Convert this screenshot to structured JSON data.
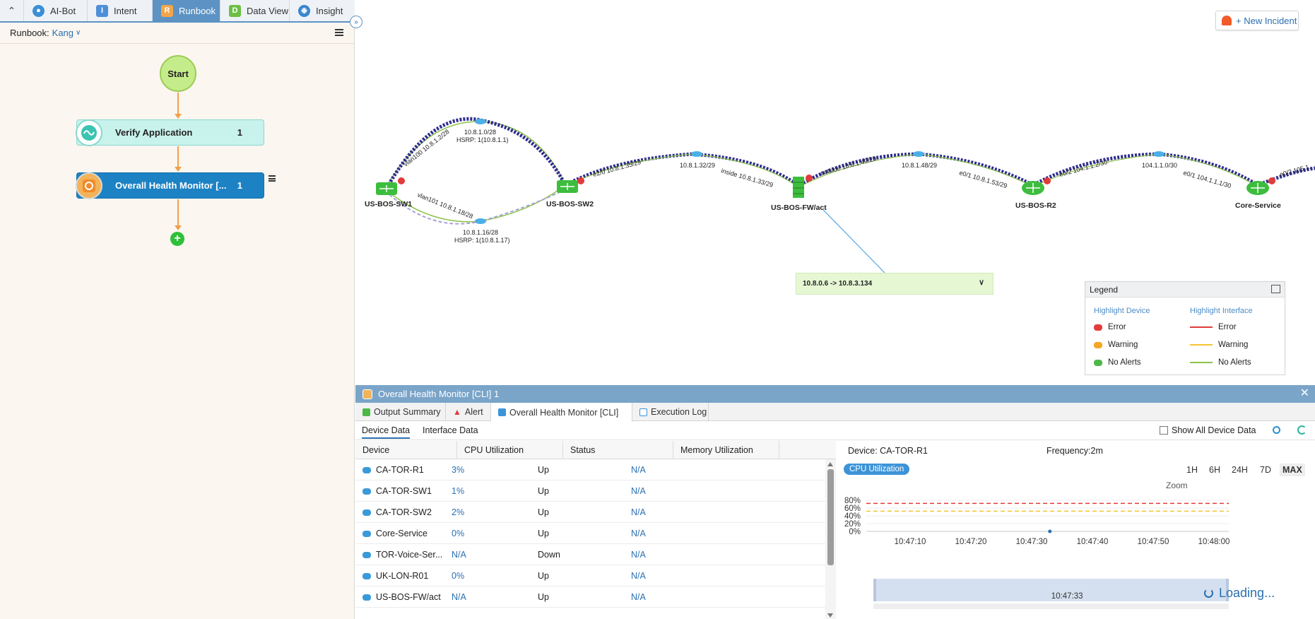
{
  "left_panel": {
    "tabs": [
      {
        "label": "AI-Bot",
        "icon": "ai-bot-icon"
      },
      {
        "label": "Intent",
        "icon": "intent-icon"
      },
      {
        "label": "Runbook",
        "icon": "runbook-icon"
      },
      {
        "label": "Data View",
        "icon": "data-view-icon"
      },
      {
        "label": "Insight",
        "icon": "insight-icon"
      }
    ],
    "active_tab": "Runbook",
    "runbook_label": "Runbook:",
    "runbook_name": "Kang",
    "flow": {
      "start_label": "Start",
      "nodes": [
        {
          "label": "Verify Application",
          "count": "1"
        },
        {
          "label": "Overall Health Monitor [...",
          "count": "1"
        }
      ]
    }
  },
  "map": {
    "new_incident_label": "+ New Incident",
    "devices": [
      "US-BOS-SW1",
      "US-BOS-SW2",
      "US-BOS-FW/act",
      "US-BOS-R2",
      "Core-Service"
    ],
    "link_labels": {
      "vlan100": "vlan100 10.8.1.2/28",
      "net1": "10.8.1.0/28",
      "hsrp1": "HSRP: 1(10.8.1.1)",
      "vlan101": "vlan101 10.8.1.18/28",
      "net2": "10.8.1.16/28",
      "hsrp2": "HSRP: 1(10.8.1.17)",
      "e2_0": "e2/0 10.8.1.35/29",
      "net3": "10.8.1.32/29",
      "inside": "inside 10.8.1.33/29",
      "outside": "outside 10.8.1.49/29",
      "net4": "10.8.1.48/29",
      "e0_1": "e0/1 10.8.1.53/29",
      "e0_2": "e0/2 104.1.1.2/30",
      "net5": "104.1.1.0/30",
      "e0_1b": "e0/1 104.1.1.1/30",
      "e0_2b": "e0/2 105.1."
    },
    "path_box": "10.8.0.6 -> 10.8.3.134",
    "legend": {
      "title": "Legend",
      "device_title": "Highlight Device",
      "interface_title": "Highlight Interface",
      "items": [
        "Error",
        "Warning",
        "No Alerts"
      ],
      "colors": {
        "error": "#e23b3b",
        "warning": "#f5a623",
        "no_alerts": "#4cb848"
      }
    }
  },
  "bottom_panel": {
    "title": "Overall Health Monitor [CLI] 1",
    "tabs": [
      "Output Summary",
      "Alert",
      "Overall Health Monitor [CLI]",
      "Execution Log"
    ],
    "subtabs": [
      "Device Data",
      "Interface Data"
    ],
    "show_all_label": "Show All Device Data",
    "columns": [
      "Device",
      "CPU Utilization",
      "Status",
      "Memory Utilization"
    ],
    "rows": [
      {
        "device": "CA-TOR-R1",
        "cpu": "3%",
        "status": "Up",
        "mem": "N/A"
      },
      {
        "device": "CA-TOR-SW1",
        "cpu": "1%",
        "status": "Up",
        "mem": "N/A"
      },
      {
        "device": "CA-TOR-SW2",
        "cpu": "2%",
        "status": "Up",
        "mem": "N/A"
      },
      {
        "device": "Core-Service",
        "cpu": "0%",
        "status": "Up",
        "mem": "N/A"
      },
      {
        "device": "TOR-Voice-Ser...",
        "cpu": "N/A",
        "status": "Down",
        "mem": "N/A"
      },
      {
        "device": "UK-LON-R01",
        "cpu": "0%",
        "status": "Up",
        "mem": "N/A"
      },
      {
        "device": "US-BOS-FW/act",
        "cpu": "N/A",
        "status": "Up",
        "mem": "N/A"
      }
    ],
    "chart_pane": {
      "device_label": "Device: CA-TOR-R1",
      "frequency_label": "Frequency:2m",
      "metric_pill": "CPU Utilization",
      "zoom_options": [
        "1H",
        "6H",
        "24H",
        "7D",
        "MAX"
      ],
      "zoom_active": "MAX",
      "zoom_label": "Zoom",
      "loading_label": "Loading...",
      "navigator_time": "10:47:33"
    }
  },
  "chart_data": {
    "type": "line",
    "title": "",
    "ylabel": "",
    "xlabel": "",
    "y_ticks": [
      "80%",
      "60%",
      "40%",
      "20%",
      "0%"
    ],
    "ylim": [
      0,
      100
    ],
    "x_ticks": [
      "10:47:10",
      "10:47:20",
      "10:47:30",
      "10:47:40",
      "10:47:50",
      "10:48:00"
    ],
    "thresholds": [
      {
        "value": 72,
        "color": "#e23b3b",
        "style": "dashed"
      },
      {
        "value": 52,
        "color": "#f5c431",
        "style": "dashed"
      }
    ],
    "series": [
      {
        "points": [
          {
            "x": "10:47:33",
            "y": 0
          }
        ]
      }
    ]
  }
}
